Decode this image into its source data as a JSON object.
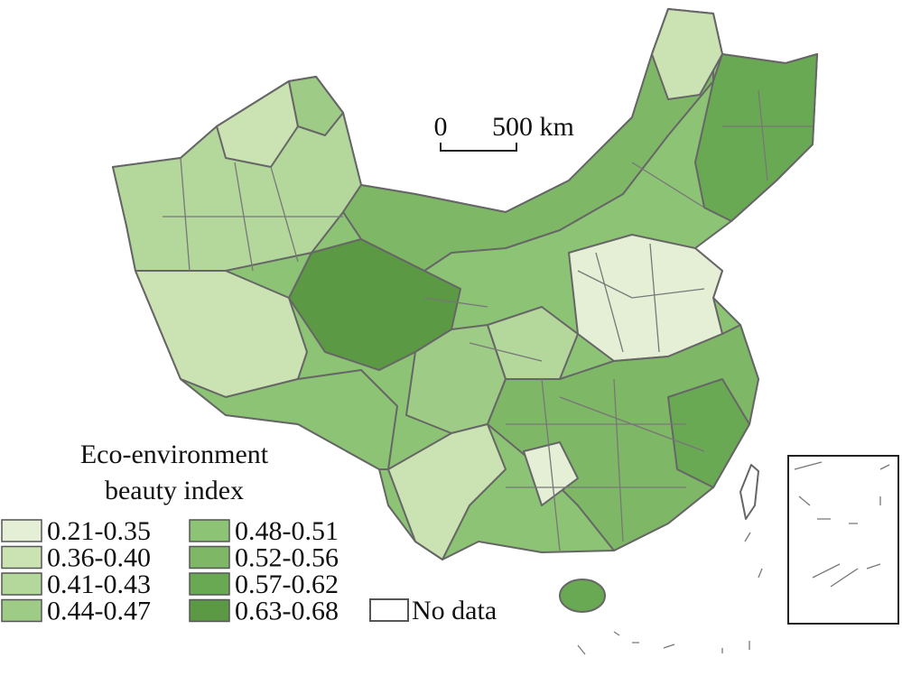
{
  "legend": {
    "title": [
      "Eco-environment",
      "beauty index"
    ],
    "items": [
      {
        "label": "0.21-0.35",
        "color": "#e4efd6"
      },
      {
        "label": "0.36-0.40",
        "color": "#cbe3b3"
      },
      {
        "label": "0.41-0.43",
        "color": "#b4d79c"
      },
      {
        "label": "0.44-0.47",
        "color": "#9ecc86"
      },
      {
        "label": "0.48-0.51",
        "color": "#8dc375"
      },
      {
        "label": "0.52-0.56",
        "color": "#7eb866"
      },
      {
        "label": "0.57-0.62",
        "color": "#6aa953"
      },
      {
        "label": "0.63-0.68",
        "color": "#5b9944"
      }
    ],
    "no_data": "No data"
  },
  "scale_bar": {
    "start": "0",
    "end": "500 km"
  }
}
